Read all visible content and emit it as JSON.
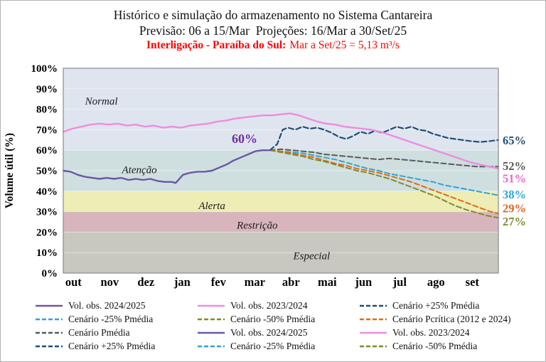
{
  "titles": {
    "line1": "Histórico e simulação do armazenamento no Sistema Cantareira",
    "line2": "Previsão: 06 a 15/Mar  Projeções: 16/Mar a 30/Set/25",
    "line3_bold": "Interligação - Paraíba do Sul:",
    "line3_rest": "Mar a Set/25 = 5,13 m³/s"
  },
  "chart_data": {
    "type": "line",
    "title": "Histórico e simulação do armazenamento no Sistema Cantareira",
    "ylabel": "Volume útil (%)",
    "ylim": [
      0,
      100
    ],
    "ytick_step": 10,
    "x_categories": [
      "out",
      "nov",
      "dez",
      "jan",
      "fev",
      "mar",
      "abr",
      "mai",
      "jun",
      "jul",
      "ago",
      "set"
    ],
    "zones": [
      {
        "label": "Normal",
        "from": 60,
        "to": 100,
        "color": "#dfe5ef",
        "label_x": 1.05,
        "label_y": 84
      },
      {
        "label": "Atenção",
        "from": 40,
        "to": 60,
        "color": "#cfdfe0",
        "label_x": 2.1,
        "label_y": 50.5
      },
      {
        "label": "Alerta",
        "from": 30,
        "to": 40,
        "color": "#ededb5",
        "label_x": 4.1,
        "label_y": 33
      },
      {
        "label": "Restrição",
        "from": 20,
        "to": 30,
        "color": "#d8b5bd",
        "label_x": 5.35,
        "label_y": 23.5
      },
      {
        "label": "Especial",
        "from": 0,
        "to": 20,
        "color": "#c9c8c0",
        "label_x": 6.85,
        "label_y": 8.5
      }
    ],
    "series": [
      {
        "name": "Cenário Pmédia",
        "color": "#595959",
        "style": "dashed",
        "width": 2,
        "points": [
          [
            5.7,
            60
          ],
          [
            6.0,
            60.5
          ],
          [
            6.3,
            60
          ],
          [
            6.6,
            59.5
          ],
          [
            6.9,
            59
          ],
          [
            7.2,
            58
          ],
          [
            7.5,
            57.5
          ],
          [
            7.8,
            57
          ],
          [
            8.1,
            56.5
          ],
          [
            8.4,
            56
          ],
          [
            8.7,
            55.5
          ],
          [
            9.0,
            56
          ],
          [
            9.3,
            55.5
          ],
          [
            9.6,
            55
          ],
          [
            9.9,
            54.5
          ],
          [
            10.2,
            54
          ],
          [
            10.5,
            53.5
          ],
          [
            10.8,
            53
          ],
          [
            11.1,
            52.5
          ],
          [
            11.4,
            52
          ],
          [
            11.7,
            52
          ],
          [
            12,
            52
          ]
        ]
      },
      {
        "name": "Cenário -25% Pmédia",
        "color": "#2fa3d8",
        "style": "dashed",
        "width": 2,
        "points": [
          [
            5.7,
            60
          ],
          [
            6.0,
            59.5
          ],
          [
            6.3,
            59
          ],
          [
            6.6,
            58.5
          ],
          [
            6.9,
            57.5
          ],
          [
            7.2,
            56.5
          ],
          [
            7.5,
            55.5
          ],
          [
            7.8,
            54
          ],
          [
            8.1,
            52.5
          ],
          [
            8.4,
            51
          ],
          [
            8.7,
            50
          ],
          [
            9.0,
            48.5
          ],
          [
            9.3,
            47.5
          ],
          [
            9.6,
            46.5
          ],
          [
            9.9,
            45.5
          ],
          [
            10.2,
            44.5
          ],
          [
            10.5,
            43
          ],
          [
            10.8,
            42
          ],
          [
            11.1,
            41
          ],
          [
            11.4,
            40
          ],
          [
            11.7,
            39
          ],
          [
            12,
            38
          ]
        ]
      },
      {
        "name": "Cenário Pcrítica (2012 e 2024)",
        "color": "#e36c0a",
        "style": "dashed",
        "width": 2,
        "points": [
          [
            5.7,
            60
          ],
          [
            6.0,
            59.5
          ],
          [
            6.3,
            58.5
          ],
          [
            6.6,
            57.5
          ],
          [
            6.9,
            56.5
          ],
          [
            7.2,
            55
          ],
          [
            7.5,
            53.5
          ],
          [
            7.8,
            52.5
          ],
          [
            8.1,
            51
          ],
          [
            8.4,
            50
          ],
          [
            8.7,
            49
          ],
          [
            9.0,
            47.5
          ],
          [
            9.3,
            46
          ],
          [
            9.6,
            44.5
          ],
          [
            9.9,
            42.5
          ],
          [
            10.2,
            40.5
          ],
          [
            10.5,
            38.5
          ],
          [
            10.8,
            36.5
          ],
          [
            11.1,
            34.5
          ],
          [
            11.4,
            32.5
          ],
          [
            11.7,
            30.5
          ],
          [
            12,
            29
          ]
        ]
      },
      {
        "name": "Cenário -50% Pmédia",
        "color": "#7d8b2d",
        "style": "dashed",
        "width": 2,
        "points": [
          [
            5.7,
            60
          ],
          [
            6.0,
            59
          ],
          [
            6.3,
            58
          ],
          [
            6.6,
            57
          ],
          [
            6.9,
            55.5
          ],
          [
            7.2,
            54.5
          ],
          [
            7.5,
            53
          ],
          [
            7.8,
            51.5
          ],
          [
            8.1,
            50
          ],
          [
            8.4,
            49
          ],
          [
            8.7,
            47.5
          ],
          [
            9.0,
            46
          ],
          [
            9.3,
            44
          ],
          [
            9.6,
            42
          ],
          [
            9.9,
            40
          ],
          [
            10.2,
            38
          ],
          [
            10.5,
            35.5
          ],
          [
            10.8,
            33
          ],
          [
            11.1,
            31
          ],
          [
            11.4,
            29.5
          ],
          [
            11.7,
            28
          ],
          [
            12,
            27
          ]
        ]
      },
      {
        "name": "Cenário +25% Pmédia",
        "color": "#1f4e79",
        "style": "dashed",
        "width": 2.2,
        "points": [
          [
            5.7,
            60
          ],
          [
            5.9,
            63
          ],
          [
            6.05,
            70
          ],
          [
            6.2,
            71
          ],
          [
            6.4,
            70
          ],
          [
            6.6,
            71.5
          ],
          [
            6.8,
            70.5
          ],
          [
            7.0,
            71
          ],
          [
            7.2,
            70
          ],
          [
            7.4,
            68.5
          ],
          [
            7.6,
            66.5
          ],
          [
            7.8,
            65.5
          ],
          [
            8.0,
            67
          ],
          [
            8.2,
            69
          ],
          [
            8.4,
            68
          ],
          [
            8.6,
            69.5
          ],
          [
            8.8,
            68.5
          ],
          [
            9.0,
            70
          ],
          [
            9.2,
            71.5
          ],
          [
            9.4,
            70.5
          ],
          [
            9.6,
            71.5
          ],
          [
            9.8,
            70
          ],
          [
            10.0,
            69.5
          ],
          [
            10.2,
            68
          ],
          [
            10.4,
            67
          ],
          [
            10.6,
            66
          ],
          [
            10.8,
            65.5
          ],
          [
            11.0,
            65
          ],
          [
            11.2,
            64.5
          ],
          [
            11.5,
            64
          ],
          [
            11.8,
            64.5
          ],
          [
            12,
            65
          ]
        ]
      },
      {
        "name": "Vol. obs. 2023/2024",
        "color": "#ee8ce0",
        "style": "solid",
        "width": 2.4,
        "points": [
          [
            0,
            69
          ],
          [
            0.25,
            70.5
          ],
          [
            0.5,
            71.5
          ],
          [
            0.75,
            72.5
          ],
          [
            1.0,
            73
          ],
          [
            1.25,
            72.5
          ],
          [
            1.5,
            73
          ],
          [
            1.75,
            72
          ],
          [
            2.0,
            72.5
          ],
          [
            2.25,
            71.5
          ],
          [
            2.5,
            72
          ],
          [
            2.75,
            71
          ],
          [
            3.0,
            71.5
          ],
          [
            3.25,
            71
          ],
          [
            3.5,
            72
          ],
          [
            3.75,
            72.5
          ],
          [
            4.0,
            73
          ],
          [
            4.25,
            74
          ],
          [
            4.5,
            74.5
          ],
          [
            4.75,
            75.5
          ],
          [
            5.0,
            76
          ],
          [
            5.25,
            76.5
          ],
          [
            5.5,
            77
          ],
          [
            5.75,
            77
          ],
          [
            6.0,
            77.5
          ],
          [
            6.25,
            78
          ],
          [
            6.5,
            77
          ],
          [
            6.75,
            75.5
          ],
          [
            7.0,
            74
          ],
          [
            7.25,
            73
          ],
          [
            7.5,
            72.5
          ],
          [
            7.75,
            71.5
          ],
          [
            8.0,
            71
          ],
          [
            8.25,
            70.5
          ],
          [
            8.5,
            70
          ],
          [
            8.75,
            69
          ],
          [
            9.0,
            67.5
          ],
          [
            9.25,
            66
          ],
          [
            9.5,
            64.5
          ],
          [
            9.75,
            63
          ],
          [
            10.0,
            61.5
          ],
          [
            10.25,
            60
          ],
          [
            10.5,
            58.5
          ],
          [
            10.75,
            57
          ],
          [
            11.0,
            55.5
          ],
          [
            11.25,
            54
          ],
          [
            11.5,
            53
          ],
          [
            11.75,
            52
          ],
          [
            12,
            51
          ]
        ]
      },
      {
        "name": "Vol. obs. 2024/2025",
        "color": "#6a58a5",
        "style": "solid",
        "width": 2.4,
        "points": [
          [
            0,
            50
          ],
          [
            0.2,
            49.5
          ],
          [
            0.4,
            48
          ],
          [
            0.6,
            47
          ],
          [
            0.8,
            46.5
          ],
          [
            1.0,
            46
          ],
          [
            1.2,
            46.5
          ],
          [
            1.4,
            46
          ],
          [
            1.6,
            46.5
          ],
          [
            1.8,
            45.5
          ],
          [
            2.0,
            46
          ],
          [
            2.2,
            45.5
          ],
          [
            2.4,
            46
          ],
          [
            2.6,
            45
          ],
          [
            2.8,
            44.5
          ],
          [
            3.0,
            44.5
          ],
          [
            3.1,
            44
          ],
          [
            3.3,
            48
          ],
          [
            3.5,
            49
          ],
          [
            3.7,
            49.5
          ],
          [
            3.9,
            49.5
          ],
          [
            4.1,
            50
          ],
          [
            4.3,
            51.5
          ],
          [
            4.5,
            53
          ],
          [
            4.7,
            55
          ],
          [
            4.9,
            56.5
          ],
          [
            5.1,
            58
          ],
          [
            5.3,
            59.5
          ],
          [
            5.5,
            60
          ],
          [
            5.7,
            60
          ]
        ]
      }
    ],
    "annotation": {
      "text": "60%",
      "x": 5.0,
      "y": 63.5,
      "color": "#7030a0"
    },
    "end_labels": [
      {
        "text": "65%",
        "color": "#1f4e79",
        "at": 65
      },
      {
        "text": "52%",
        "color": "#595959",
        "at": 52.5
      },
      {
        "text": "51%",
        "color": "#ea66d5",
        "at": 46.3
      },
      {
        "text": "38%",
        "color": "#29a8dc",
        "at": 38.5
      },
      {
        "text": "29%",
        "color": "#e0661c",
        "at": 31.8
      },
      {
        "text": "27%",
        "color": "#7e8f33",
        "at": 25.3
      }
    ]
  },
  "legend": {
    "items": [
      {
        "label": "Vol. obs. 2024/2025",
        "color": "#6a58a5",
        "style": "solid"
      },
      {
        "label": "Vol. obs. 2023/2024",
        "color": "#ee8ce0",
        "style": "solid"
      },
      {
        "label": "Cenário +25% Pmédia",
        "color": "#1f4e79",
        "style": "dashed"
      },
      {
        "label": "Cenário -25% Pmédia",
        "color": "#2fa3d8",
        "style": "dashed"
      },
      {
        "label": "Cenário -50% Pmédia",
        "color": "#7d8b2d",
        "style": "dashed"
      },
      {
        "label": "Cenário Pcrítica (2012 e 2024)",
        "color": "#e36c0a",
        "style": "dashed"
      },
      {
        "label": "Cenário Pmédia",
        "color": "#595959",
        "style": "dashed"
      },
      {
        "label": "Vol. obs. 2024/2025",
        "color": "#6a58a5",
        "style": "solid"
      },
      {
        "label": "Vol. obs. 2023/2024",
        "color": "#ee8ce0",
        "style": "solid"
      },
      {
        "label": "Cenário +25% Pmédia",
        "color": "#1f4e79",
        "style": "dashed"
      },
      {
        "label": "Cenário -25% Pmédia",
        "color": "#2fa3d8",
        "style": "dashed"
      },
      {
        "label": "Cenário -50% Pmédia",
        "color": "#7d8b2d",
        "style": "dashed"
      }
    ]
  }
}
